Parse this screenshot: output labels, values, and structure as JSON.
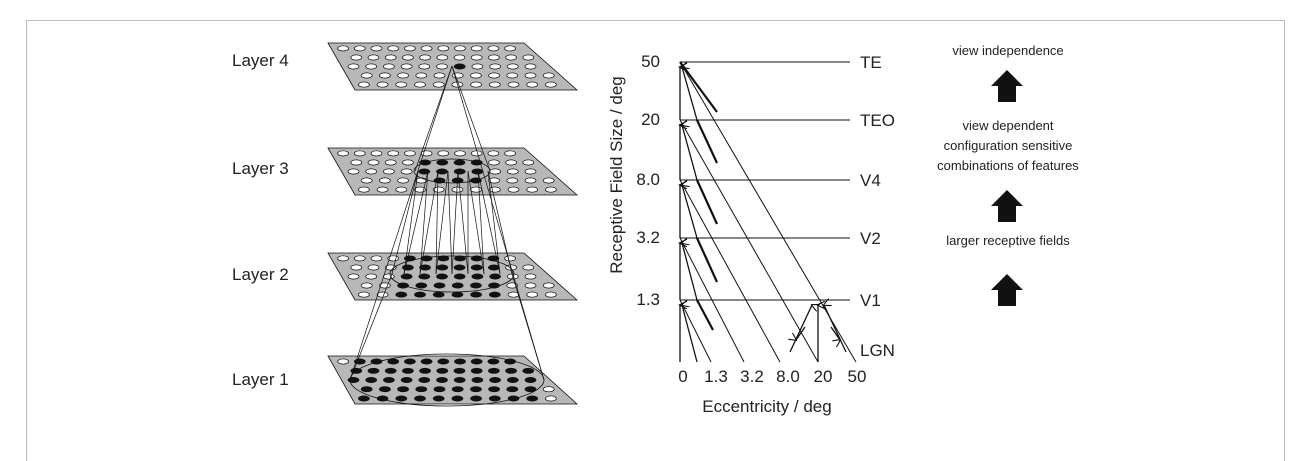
{
  "layers": {
    "layer4": "Layer 4",
    "layer3": "Layer 3",
    "layer2": "Layer 2",
    "layer1": "Layer 1"
  },
  "chart": {
    "ylabel": "Receptive Field Size / deg",
    "xlabel": "Eccentricity / deg",
    "y_ticks": [
      "50",
      "20",
      "8.0",
      "3.2",
      "1.3"
    ],
    "x_ticks": [
      "0",
      "1.3",
      "3.2",
      "8.0",
      "20",
      "50"
    ],
    "areas": [
      "TE",
      "TEO",
      "V4",
      "V2",
      "V1",
      "LGN"
    ]
  },
  "properties": {
    "top": "view independence",
    "middle_1": "view dependent",
    "middle_2": "configuration sensitive",
    "middle_3": "combinations of features",
    "bottom": "larger receptive fields"
  },
  "colors": {
    "plane_fill": "#b8b8b8",
    "ink": "#111111",
    "frame": "#bdbdbd"
  }
}
